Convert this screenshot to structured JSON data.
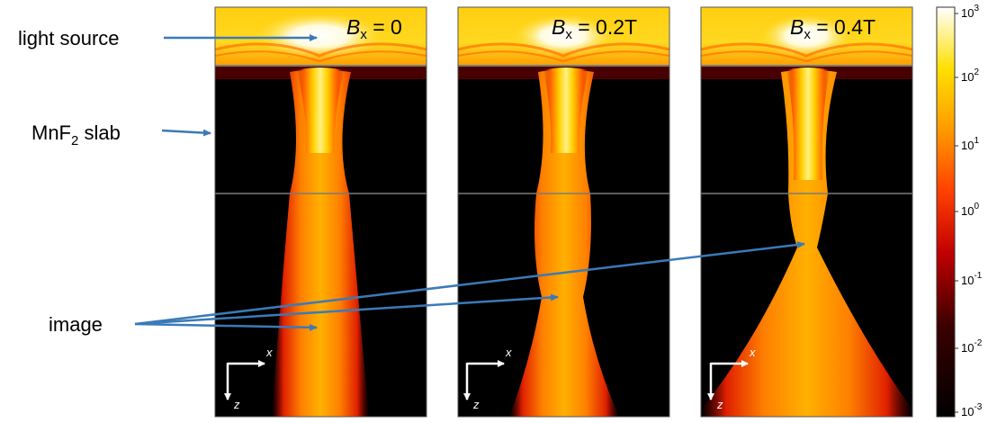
{
  "annotations": {
    "light_source": "light source",
    "slab_prefix": "MnF",
    "slab_sub": "2",
    "slab_suffix": " slab",
    "image": "image"
  },
  "panels": [
    {
      "b_symbol": "B",
      "b_sub": "x",
      "b_value": " = 0"
    },
    {
      "b_symbol": "B",
      "b_sub": "x",
      "b_value": " = 0.2T"
    },
    {
      "b_symbol": "B",
      "b_sub": "x",
      "b_value": " = 0.4T"
    }
  ],
  "axes": {
    "x": "x",
    "z": "z"
  },
  "colorbar": {
    "ticks": [
      {
        "base": "10",
        "exp": "3"
      },
      {
        "base": "10",
        "exp": "2"
      },
      {
        "base": "10",
        "exp": "1"
      },
      {
        "base": "10",
        "exp": "0"
      },
      {
        "base": "10",
        "exp": "-1"
      },
      {
        "base": "10",
        "exp": "-2"
      },
      {
        "base": "10",
        "exp": "-3"
      }
    ]
  },
  "colors": {
    "arrow": "#3b7ab8",
    "slab_line": "#7a7a7a",
    "panel_border": "#555555"
  }
}
